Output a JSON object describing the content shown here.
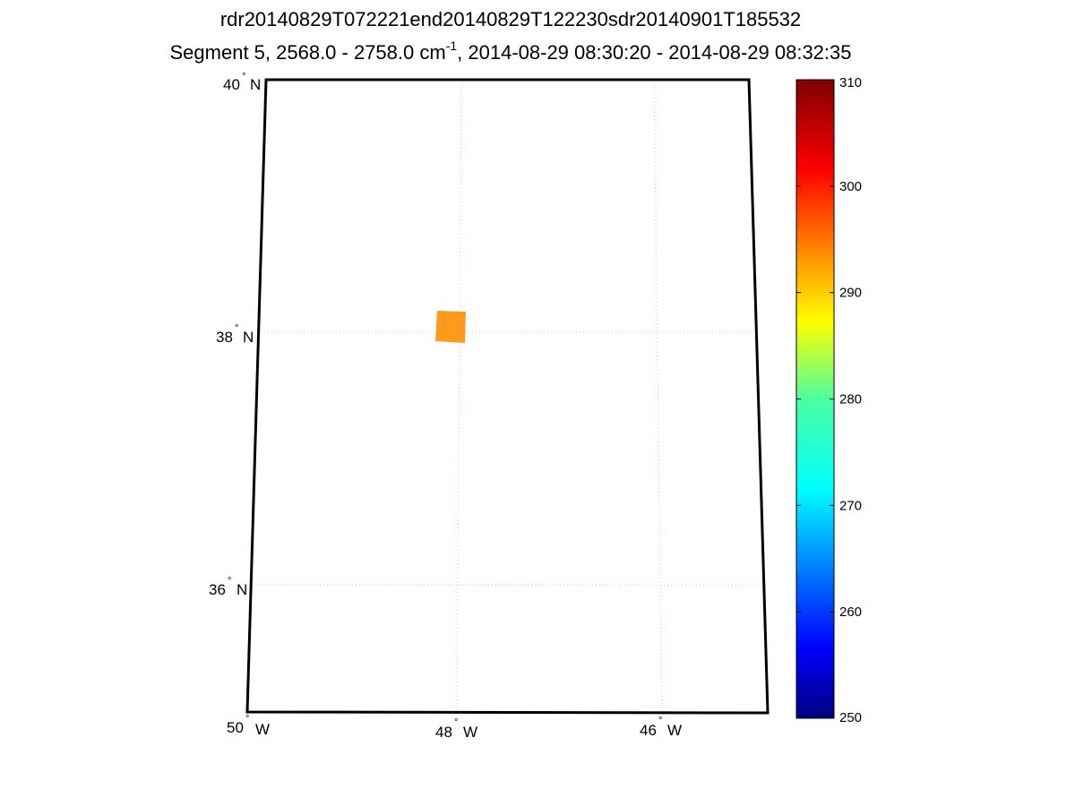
{
  "figure": {
    "title_line1": "rdr20140829T072221end20140829T122230sdr20140901T185532",
    "title_line2_prefix": "Segment 5, 2568.0 - 2758.0 cm",
    "title_line2_sup": "-1",
    "title_line2_suffix": ", 2014-08-29 08:30:20 - 2014-08-29 08:32:35"
  },
  "map": {
    "lat_labels": [
      {
        "deg": "40",
        "hemi": "N"
      },
      {
        "deg": "38",
        "hemi": "N"
      },
      {
        "deg": "36",
        "hemi": "N"
      }
    ],
    "lon_labels": [
      {
        "deg": "50",
        "hemi": "W"
      },
      {
        "deg": "48",
        "hemi": "W"
      },
      {
        "deg": "46",
        "hemi": "W"
      }
    ],
    "grid": "dotted",
    "data_patch": {
      "value": 294,
      "color": "#ff9a1a",
      "location": "near 38° N, 48° W"
    }
  },
  "colorbar": {
    "min": 250,
    "max": 310,
    "ticks": [
      "310",
      "300",
      "290",
      "280",
      "270",
      "260",
      "250"
    ],
    "colormap": "jet"
  },
  "colors": {
    "frame": "#000000",
    "grid": "#c8c8c8",
    "patch": "#ff9a1a"
  }
}
